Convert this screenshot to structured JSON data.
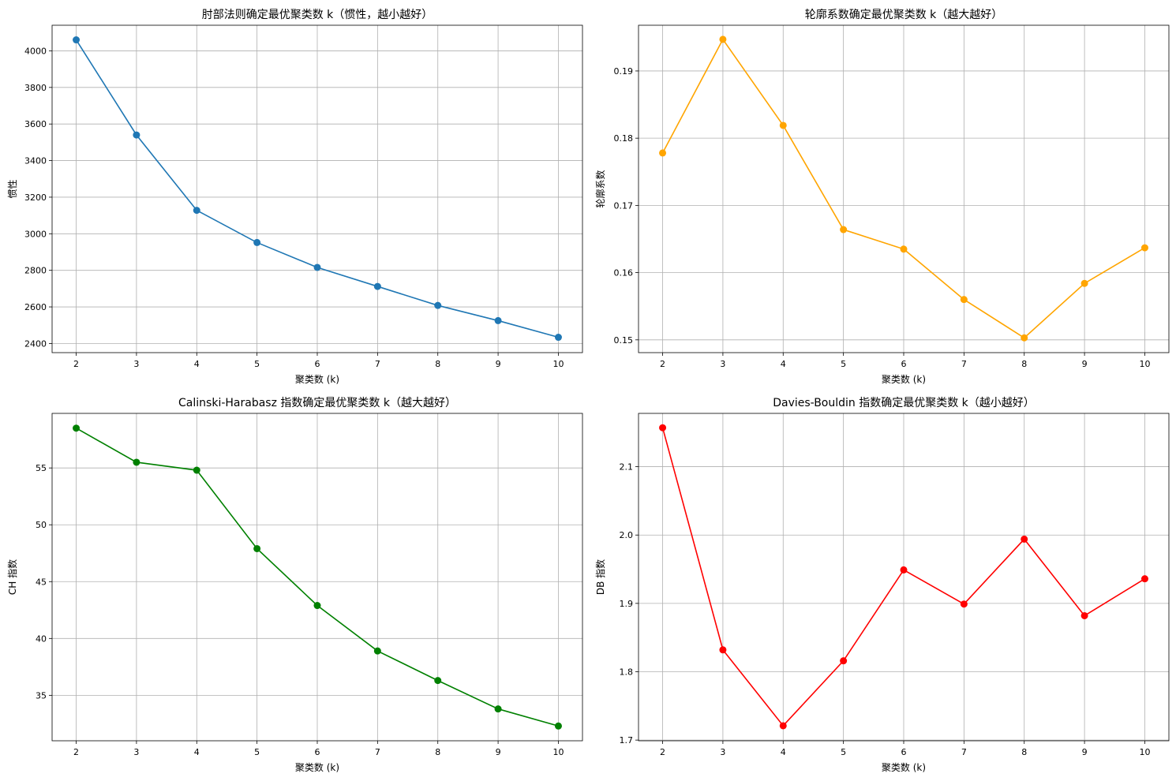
{
  "chart_data": [
    {
      "type": "line",
      "title": "肘部法则确定最优聚类数 k（惯性，越小越好）",
      "xlabel": "聚类数 (k)",
      "ylabel": "惯性",
      "x": [
        2,
        3,
        4,
        5,
        6,
        7,
        8,
        9,
        10
      ],
      "y": [
        4060,
        3540,
        3128,
        2952,
        2816,
        2712,
        2608,
        2525,
        2434
      ],
      "xlim": [
        1.6,
        10.4
      ],
      "ylim": [
        2350,
        4140
      ],
      "yticks": [
        2400,
        2600,
        2800,
        3000,
        3200,
        3400,
        3600,
        3800,
        4000
      ],
      "ytick_labels": [
        "2400",
        "2600",
        "2800",
        "3000",
        "3200",
        "3400",
        "3600",
        "3800",
        "4000"
      ],
      "xticks": [
        2,
        3,
        4,
        5,
        6,
        7,
        8,
        9,
        10
      ],
      "color": "#1f77b4",
      "marker": "circle",
      "grid": true
    },
    {
      "type": "line",
      "title": "轮廓系数确定最优聚类数 k（越大越好）",
      "xlabel": "聚类数 (k)",
      "ylabel": "轮廓系数",
      "x": [
        2,
        3,
        4,
        5,
        6,
        7,
        8,
        9,
        10
      ],
      "y": [
        0.1778,
        0.1947,
        0.1819,
        0.1664,
        0.1635,
        0.156,
        0.1503,
        0.1584,
        0.1637
      ],
      "xlim": [
        1.6,
        10.4
      ],
      "ylim": [
        0.1481,
        0.1968
      ],
      "yticks": [
        0.15,
        0.16,
        0.17,
        0.18,
        0.19
      ],
      "ytick_labels": [
        "0.15",
        "0.16",
        "0.17",
        "0.18",
        "0.19"
      ],
      "xticks": [
        2,
        3,
        4,
        5,
        6,
        7,
        8,
        9,
        10
      ],
      "color": "#ffa500",
      "marker": "circle",
      "grid": true
    },
    {
      "type": "line",
      "title": "Calinski-Harabasz 指数确定最优聚类数 k（越大越好）",
      "xlabel": "聚类数 (k)",
      "ylabel": "CH 指数",
      "x": [
        2,
        3,
        4,
        5,
        6,
        7,
        8,
        9,
        10
      ],
      "y": [
        58.5,
        55.5,
        54.8,
        47.9,
        42.9,
        38.9,
        36.3,
        33.8,
        32.3
      ],
      "xlim": [
        1.6,
        10.4
      ],
      "ylim": [
        31.0,
        59.8
      ],
      "yticks": [
        35,
        40,
        45,
        50,
        55
      ],
      "ytick_labels": [
        "35",
        "40",
        "45",
        "50",
        "55"
      ],
      "xticks": [
        2,
        3,
        4,
        5,
        6,
        7,
        8,
        9,
        10
      ],
      "color": "#008000",
      "marker": "circle",
      "grid": true
    },
    {
      "type": "line",
      "title": "Davies-Bouldin 指数确定最优聚类数 k（越小越好）",
      "xlabel": "聚类数 (k)",
      "ylabel": "DB 指数",
      "x": [
        2,
        3,
        4,
        5,
        6,
        7,
        8,
        9,
        10
      ],
      "y": [
        2.157,
        1.832,
        1.721,
        1.816,
        1.949,
        1.899,
        1.994,
        1.882,
        1.936
      ],
      "xlim": [
        1.6,
        10.4
      ],
      "ylim": [
        1.699,
        2.178
      ],
      "yticks": [
        1.7,
        1.8,
        1.9,
        2.0,
        2.1
      ],
      "ytick_labels": [
        "1.7",
        "1.8",
        "1.9",
        "2.0",
        "2.1"
      ],
      "xticks": [
        2,
        3,
        4,
        5,
        6,
        7,
        8,
        9,
        10
      ],
      "color": "#ff0000",
      "marker": "circle",
      "grid": true
    }
  ]
}
